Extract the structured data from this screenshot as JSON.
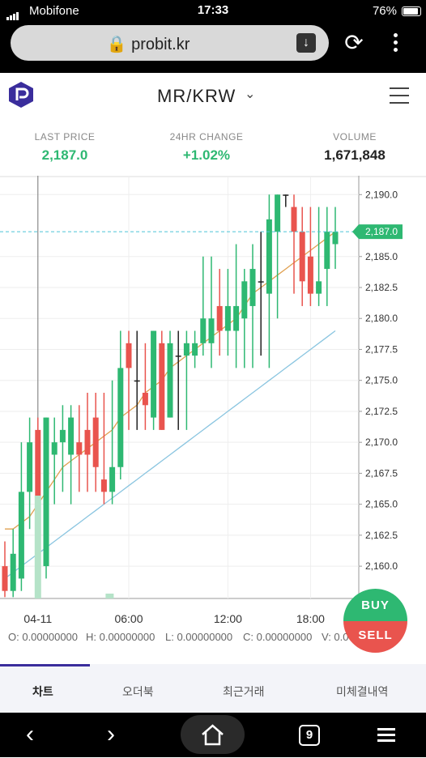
{
  "status_bar": {
    "carrier": "Mobifone",
    "time": "17:33",
    "battery": "76%"
  },
  "browser": {
    "url": "probit.kr",
    "tab_count": "9"
  },
  "header": {
    "pair": "MR/KRW"
  },
  "stats": {
    "last_price_label": "LAST PRICE",
    "last_price": "2,187.0",
    "change_label": "24HR CHANGE",
    "change": "+1.02%",
    "volume_label": "VOLUME",
    "volume": "1,671,848"
  },
  "colors": {
    "up": "#2eb872",
    "down": "#e9544e",
    "accent": "#3a2d9c",
    "ma_short": "#e0a050",
    "ma_long": "#8ac5e0"
  },
  "ohlc": {
    "o": "O: 0.00000000",
    "h": "H: 0.00000000",
    "l": "L: 0.00000000",
    "c": "C: 0.00000000",
    "v": "V: 0.00"
  },
  "buttons": {
    "buy": "BUY",
    "sell": "SELL"
  },
  "tabs": [
    "차트",
    "오더북",
    "최근거래",
    "미체결내역"
  ],
  "chart_data": {
    "type": "candlestick",
    "current_price": "2,187.0",
    "y_ticks": [
      "2,190.0",
      "2,185.0",
      "2,182.5",
      "2,180.0",
      "2,177.5",
      "2,175.0",
      "2,172.5",
      "2,170.0",
      "2,167.5",
      "2,165.0",
      "2,162.5",
      "2,160.0"
    ],
    "y_tick_values": [
      2190.0,
      2185.0,
      2182.5,
      2180.0,
      2177.5,
      2175.0,
      2172.5,
      2170.0,
      2167.5,
      2165.0,
      2162.5,
      2160.0
    ],
    "ylim": [
      2157.0,
      2191.0
    ],
    "x_ticks": [
      "04-11",
      "06:00",
      "12:00",
      "18:00"
    ],
    "x_tick_index": [
      4,
      15,
      27,
      37
    ],
    "candles": [
      {
        "o": 2160,
        "c": 2158,
        "h": 2162,
        "l": 2157.5
      },
      {
        "o": 2158,
        "c": 2161,
        "h": 2163,
        "l": 2157.5
      },
      {
        "o": 2159,
        "c": 2166,
        "h": 2170,
        "l": 2158
      },
      {
        "o": 2166,
        "c": 2170,
        "h": 2172,
        "l": 2163
      },
      {
        "o": 2171,
        "c": 2160,
        "h": 2172,
        "l": 2158
      },
      {
        "o": 2160,
        "c": 2172,
        "h": 2172,
        "l": 2159
      },
      {
        "o": 2169,
        "c": 2170,
        "h": 2172,
        "l": 2165
      },
      {
        "o": 2170,
        "c": 2171,
        "h": 2173,
        "l": 2166
      },
      {
        "o": 2169,
        "c": 2172,
        "h": 2173,
        "l": 2165
      },
      {
        "o": 2170,
        "c": 2169,
        "h": 2173,
        "l": 2166
      },
      {
        "o": 2171,
        "c": 2169,
        "h": 2174,
        "l": 2166
      },
      {
        "o": 2172,
        "c": 2168,
        "h": 2174,
        "l": 2166
      },
      {
        "o": 2167,
        "c": 2166,
        "h": 2174,
        "l": 2165
      },
      {
        "o": 2166,
        "c": 2168,
        "h": 2175,
        "l": 2165
      },
      {
        "o": 2168,
        "c": 2176,
        "h": 2179,
        "l": 2167
      },
      {
        "o": 2178,
        "c": 2176,
        "h": 2179,
        "l": 2171
      },
      {
        "o": 2175,
        "c": 2175,
        "h": 2179,
        "l": 2171
      },
      {
        "o": 2174,
        "c": 2173,
        "h": 2178,
        "l": 2171
      },
      {
        "o": 2172,
        "c": 2179,
        "h": 2179,
        "l": 2171
      },
      {
        "o": 2178,
        "c": 2171,
        "h": 2179,
        "l": 2171
      },
      {
        "o": 2172,
        "c": 2178,
        "h": 2179,
        "l": 2172
      },
      {
        "o": 2177,
        "c": 2177,
        "h": 2179,
        "l": 2171
      },
      {
        "o": 2177,
        "c": 2178,
        "h": 2179,
        "l": 2171
      },
      {
        "o": 2177,
        "c": 2178,
        "h": 2179,
        "l": 2176
      },
      {
        "o": 2178,
        "c": 2180,
        "h": 2185,
        "l": 2177
      },
      {
        "o": 2178,
        "c": 2180,
        "h": 2185,
        "l": 2176
      },
      {
        "o": 2181,
        "c": 2179,
        "h": 2184,
        "l": 2177
      },
      {
        "o": 2179,
        "c": 2181,
        "h": 2184,
        "l": 2177
      },
      {
        "o": 2179,
        "c": 2181,
        "h": 2186,
        "l": 2176
      },
      {
        "o": 2180,
        "c": 2183,
        "h": 2184,
        "l": 2176
      },
      {
        "o": 2181,
        "c": 2184,
        "h": 2186,
        "l": 2176
      },
      {
        "o": 2183,
        "c": 2183,
        "h": 2187,
        "l": 2177
      },
      {
        "o": 2182,
        "c": 2188,
        "h": 2190,
        "l": 2176
      },
      {
        "o": 2187,
        "c": 2190,
        "h": 2190,
        "l": 2180
      },
      {
        "o": 2190,
        "c": 2190,
        "h": 2190,
        "l": 2189
      },
      {
        "o": 2189,
        "c": 2187,
        "h": 2190,
        "l": 2182
      },
      {
        "o": 2187,
        "c": 2183,
        "h": 2189,
        "l": 2181
      },
      {
        "o": 2185,
        "c": 2182,
        "h": 2189,
        "l": 2181
      },
      {
        "o": 2182,
        "c": 2183,
        "h": 2189,
        "l": 2181
      },
      {
        "o": 2184,
        "c": 2187,
        "h": 2189,
        "l": 2181
      },
      {
        "o": 2186,
        "c": 2187,
        "h": 2189,
        "l": 2184
      }
    ],
    "ma_short": [
      2163,
      2163,
      2163.5,
      2164,
      2165,
      2166,
      2167,
      2168,
      2168.5,
      2169,
      2169.5,
      2170,
      2170.5,
      2171,
      2172,
      2172.5,
      2173,
      2174,
      2174.5,
      2175,
      2176,
      2176.5,
      2177,
      2177.5,
      2178,
      2178.5,
      2179,
      2179.5,
      2180,
      2181,
      2182,
      2182.5,
      2183,
      2183.5,
      2184,
      2184.5,
      2185,
      2185.5,
      2186,
      2186.5,
      2187
    ],
    "ma_long": [
      2159,
      2159.5,
      2160,
      2160.5,
      2161,
      2161.5,
      2162,
      2162.5,
      2163,
      2163.5,
      2164,
      2164.5,
      2165,
      2165.5,
      2166,
      2166.5,
      2167,
      2167.5,
      2168,
      2168.5,
      2169,
      2169.5,
      2170,
      2170.5,
      2171,
      2171.5,
      2172,
      2172.5,
      2173,
      2173.5,
      2174,
      2174.5,
      2175,
      2175.5,
      2176,
      2176.5,
      2177,
      2177.5,
      2178,
      2178.5,
      2179
    ]
  }
}
